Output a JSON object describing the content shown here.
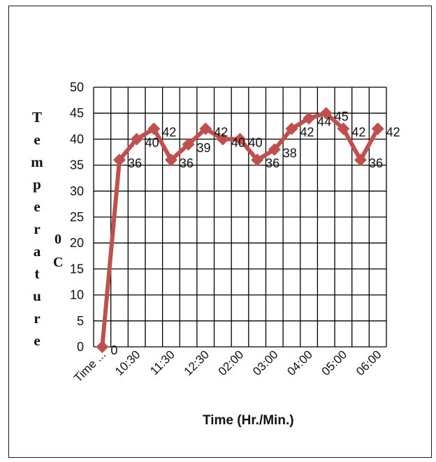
{
  "chart_data": {
    "type": "line",
    "title": "",
    "xlabel": "Time (Hr./Min.)",
    "ylabel": "Temperature",
    "ylabel_unit_sup": "0",
    "ylabel_unit": "C",
    "ylim": [
      0,
      50
    ],
    "yticks": [
      0,
      5,
      10,
      15,
      20,
      25,
      30,
      35,
      40,
      45,
      50
    ],
    "grid": true,
    "legend": "none",
    "category_labels": [
      "Time ...",
      "10:30",
      "11:30",
      "12:30",
      "02:00",
      "03:00",
      "04:00",
      "05:00",
      "06:00"
    ],
    "series": [
      {
        "values": [
          0,
          36,
          40,
          42,
          36,
          39,
          42,
          40,
          40,
          36,
          38,
          42,
          44,
          45,
          42,
          36,
          42
        ],
        "data_labels": [
          "0",
          "36",
          "40",
          "42",
          "36",
          "39",
          "42",
          "40",
          "40",
          "36",
          "38",
          "42",
          "44",
          "45",
          "42",
          "36",
          "42"
        ],
        "color": "#c0504d",
        "marker": "diamond"
      }
    ]
  }
}
